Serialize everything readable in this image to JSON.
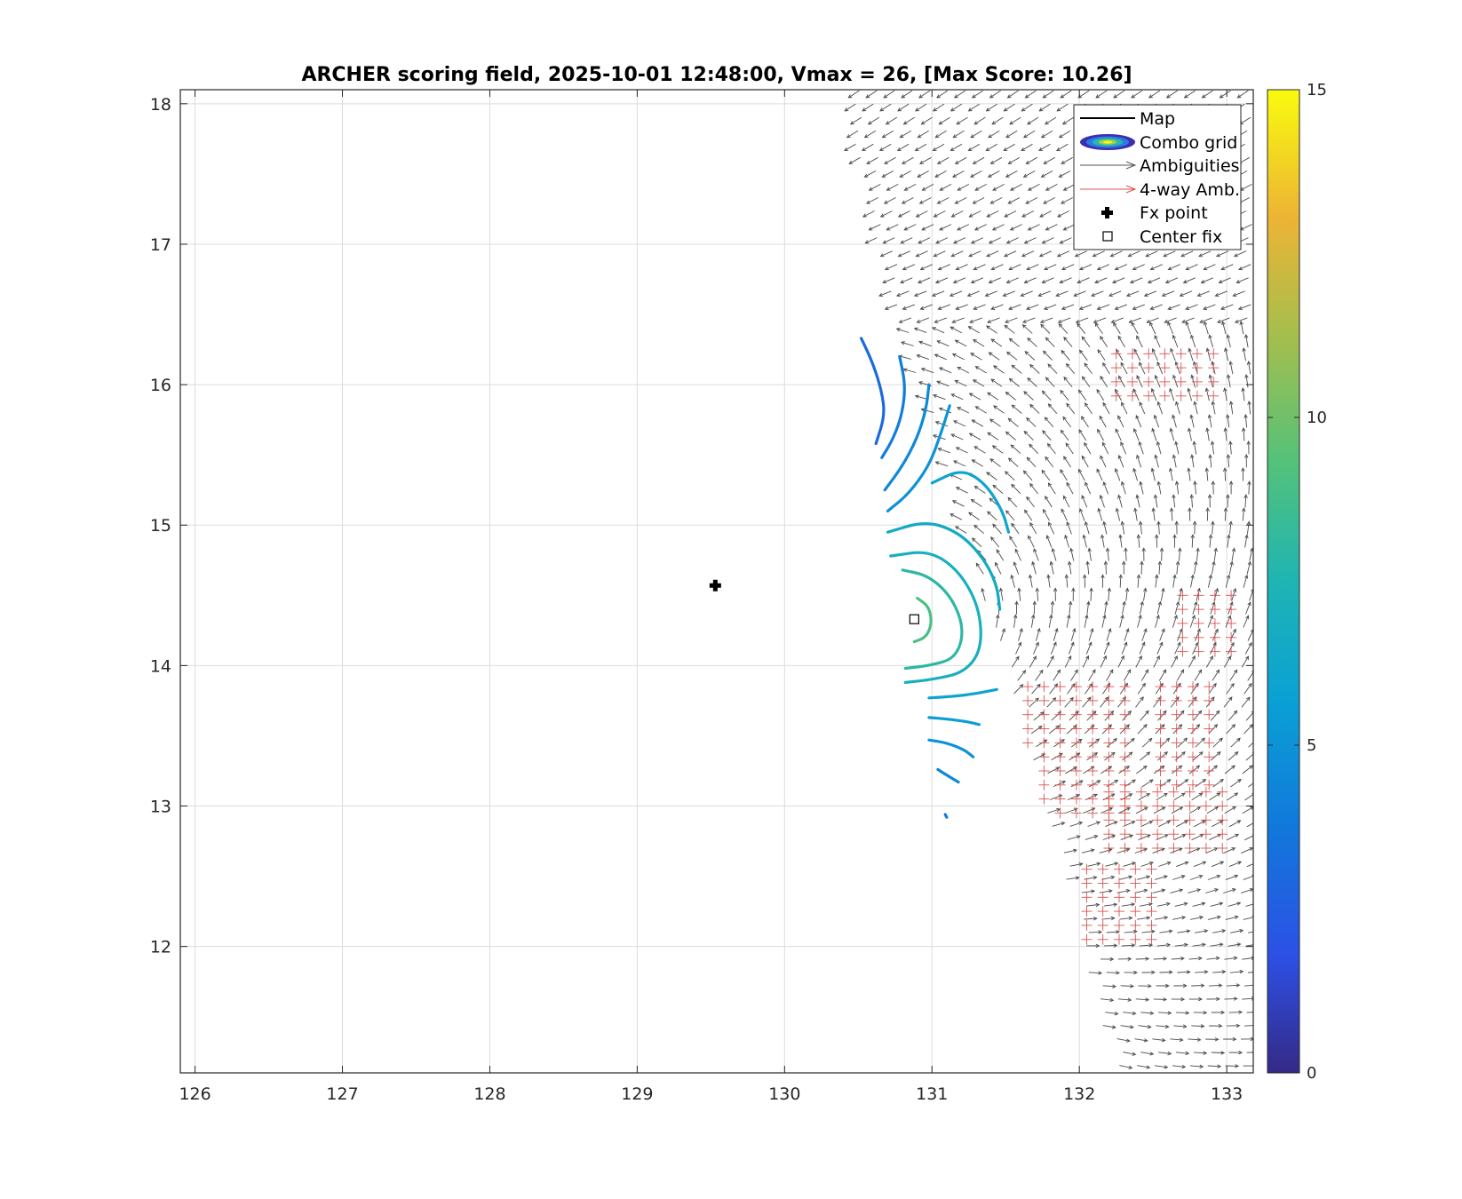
{
  "chart_data": {
    "type": "contour",
    "title": "ARCHER scoring field, 2025-10-01 12:48:00, Vmax = 26, [Max Score: 10.26]",
    "xlabel": "",
    "ylabel": "",
    "xlim": [
      125.9,
      133.18
    ],
    "ylim": [
      11.1,
      18.1
    ],
    "x_ticks": [
      "126",
      "127",
      "128",
      "129",
      "130",
      "131",
      "132",
      "133"
    ],
    "y_ticks": [
      "12",
      "13",
      "14",
      "15",
      "16",
      "17",
      "18"
    ],
    "grid": true,
    "colorbar": {
      "min": 0,
      "max": 15,
      "ticks": [
        "0",
        "5",
        "10",
        "15"
      ],
      "colormap": "parula"
    },
    "legend": {
      "placement": "top-right",
      "entries": [
        "Map",
        "Combo grid",
        "Ambiguities",
        "4-way Amb.",
        "Fx point",
        "Center fix"
      ]
    },
    "fx_point": {
      "x": 129.53,
      "y": 14.57
    },
    "center_fix": {
      "x": 130.88,
      "y": 14.33
    },
    "contours": [
      {
        "level": 3.0,
        "points": [
          [
            130.52,
            16.33
          ],
          [
            130.6,
            16.15
          ],
          [
            130.66,
            15.95
          ],
          [
            130.68,
            15.78
          ],
          [
            130.62,
            15.58
          ]
        ]
      },
      {
        "level": 4.0,
        "points": [
          [
            130.78,
            16.2
          ],
          [
            130.82,
            16.0
          ],
          [
            130.8,
            15.8
          ],
          [
            130.74,
            15.62
          ],
          [
            130.66,
            15.48
          ]
        ]
      },
      {
        "level": 4.5,
        "points": [
          [
            130.98,
            16.0
          ],
          [
            130.96,
            15.82
          ],
          [
            130.9,
            15.62
          ],
          [
            130.8,
            15.42
          ],
          [
            130.68,
            15.25
          ]
        ]
      },
      {
        "level": 5.0,
        "points": [
          [
            131.12,
            15.85
          ],
          [
            131.06,
            15.65
          ],
          [
            130.98,
            15.42
          ],
          [
            130.84,
            15.22
          ],
          [
            130.7,
            15.1
          ]
        ]
      },
      {
        "level": 6.0,
        "points": [
          [
            131.0,
            15.3
          ],
          [
            131.2,
            15.4
          ],
          [
            131.36,
            15.3
          ],
          [
            131.48,
            15.1
          ],
          [
            131.52,
            14.95
          ]
        ]
      },
      {
        "level": 6.5,
        "points": [
          [
            130.7,
            14.95
          ],
          [
            130.96,
            15.03
          ],
          [
            131.18,
            14.95
          ],
          [
            131.34,
            14.78
          ],
          [
            131.44,
            14.58
          ],
          [
            131.46,
            14.4
          ]
        ]
      },
      {
        "level": 7.0,
        "points": [
          [
            130.72,
            14.78
          ],
          [
            130.98,
            14.82
          ],
          [
            131.18,
            14.68
          ],
          [
            131.32,
            14.42
          ],
          [
            131.34,
            14.12
          ],
          [
            131.22,
            13.95
          ],
          [
            131.0,
            13.9
          ],
          [
            130.82,
            13.88
          ]
        ]
      },
      {
        "level": 8.0,
        "points": [
          [
            130.8,
            14.68
          ],
          [
            130.98,
            14.64
          ],
          [
            131.14,
            14.48
          ],
          [
            131.22,
            14.25
          ],
          [
            131.16,
            14.05
          ],
          [
            130.98,
            14.0
          ],
          [
            130.82,
            13.98
          ]
        ]
      },
      {
        "level": 9.0,
        "points": [
          [
            130.9,
            14.48
          ],
          [
            130.98,
            14.42
          ],
          [
            131.0,
            14.3
          ],
          [
            130.96,
            14.2
          ],
          [
            130.88,
            14.17
          ]
        ]
      },
      {
        "level": 6.0,
        "points": [
          [
            130.98,
            13.77
          ],
          [
            131.14,
            13.78
          ],
          [
            131.3,
            13.8
          ],
          [
            131.44,
            13.83
          ]
        ]
      },
      {
        "level": 5.5,
        "points": [
          [
            130.98,
            13.63
          ],
          [
            131.1,
            13.62
          ],
          [
            131.24,
            13.6
          ],
          [
            131.32,
            13.58
          ]
        ]
      },
      {
        "level": 5.0,
        "points": [
          [
            130.98,
            13.47
          ],
          [
            131.1,
            13.45
          ],
          [
            131.22,
            13.4
          ],
          [
            131.28,
            13.35
          ]
        ]
      },
      {
        "level": 4.5,
        "points": [
          [
            131.04,
            13.26
          ],
          [
            131.1,
            13.22
          ],
          [
            131.18,
            13.17
          ]
        ]
      },
      {
        "level": 4.0,
        "points": [
          [
            131.09,
            12.94
          ],
          [
            131.1,
            12.92
          ]
        ]
      }
    ]
  }
}
